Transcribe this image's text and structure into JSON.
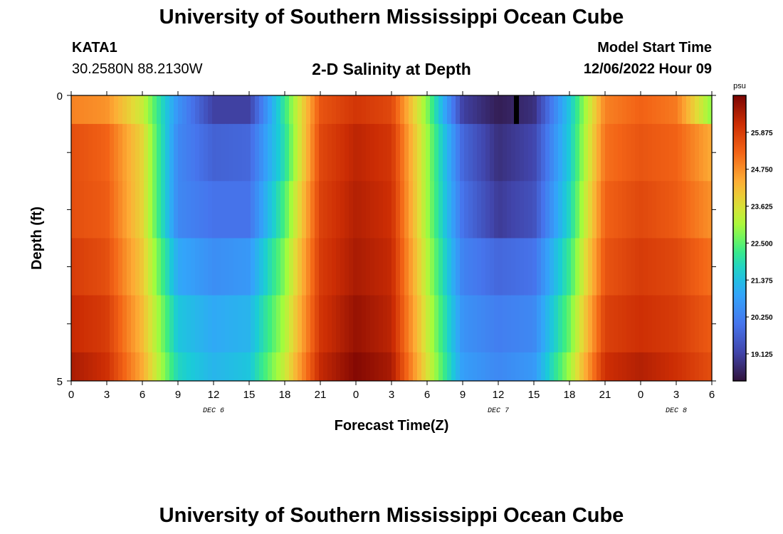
{
  "header": {
    "title": "University of Southern Mississippi Ocean Cube",
    "station": "KATA1",
    "coords": "30.2580N  88.2130W",
    "subtitle": "2-D Salinity at Depth",
    "model_start_label": "Model Start Time",
    "model_start_value": "12/06/2022 Hour 09"
  },
  "footer": {
    "title": "University of Southern Mississippi Ocean Cube"
  },
  "chart_data": {
    "type": "heatmap",
    "title": "2-D Salinity at Depth",
    "xlabel": "Forecast Time(Z)",
    "ylabel": "Depth (ft)",
    "x_hours_range": [
      0,
      54
    ],
    "x_tick_labels": [
      "0",
      "3",
      "6",
      "9",
      "12",
      "15",
      "18",
      "21",
      "0",
      "3",
      "6",
      "9",
      "12",
      "15",
      "18",
      "21",
      "0",
      "3",
      "6"
    ],
    "day_labels": [
      {
        "label": "DEC 6",
        "hour": 12
      },
      {
        "label": "DEC 7",
        "hour": 36
      },
      {
        "label": "DEC 8",
        "hour": 51
      }
    ],
    "y_tick_labels": [
      "0",
      "5"
    ],
    "ylim": [
      0,
      5
    ],
    "depth_levels_ft": [
      0,
      1,
      2,
      3,
      4,
      5
    ],
    "colorbar": {
      "unit": "psu",
      "range": [
        18.3,
        27.0
      ],
      "tick_values": [
        19.125,
        20.25,
        21.375,
        22.5,
        23.625,
        24.75,
        25.875
      ],
      "tick_labels": [
        "19.125",
        "20.250",
        "21.375",
        "22.500",
        "23.625",
        "24.750",
        "25.875"
      ]
    },
    "grid": false,
    "legend": "right colorbar",
    "salinity_psu": {
      "hours": [
        0,
        3,
        6,
        9,
        12,
        15,
        18,
        21,
        24,
        27,
        30,
        33,
        36,
        39,
        42,
        45,
        48,
        51,
        54
      ],
      "rows": [
        [
          24.9,
          24.7,
          23.4,
          20.6,
          19.1,
          19.1,
          22.2,
          25.5,
          26.0,
          25.7,
          22.8,
          19.1,
          18.5,
          18.8,
          21.5,
          24.9,
          25.3,
          25.0,
          22.8
        ],
        [
          25.6,
          25.3,
          23.8,
          20.4,
          19.7,
          19.8,
          22.0,
          25.7,
          26.3,
          26.0,
          23.0,
          19.8,
          18.8,
          19.2,
          21.6,
          25.1,
          25.5,
          25.3,
          24.4
        ],
        [
          25.6,
          25.4,
          23.8,
          20.4,
          20.0,
          20.0,
          22.4,
          25.8,
          26.4,
          26.1,
          23.0,
          20.0,
          19.0,
          19.4,
          21.8,
          25.3,
          25.7,
          25.4,
          24.7
        ],
        [
          25.9,
          25.6,
          24.0,
          21.0,
          20.5,
          20.7,
          22.8,
          25.9,
          26.5,
          26.2,
          23.2,
          20.3,
          19.8,
          20.0,
          22.2,
          25.5,
          25.9,
          25.7,
          25.1
        ],
        [
          26.2,
          25.9,
          24.2,
          21.5,
          21.0,
          21.2,
          23.1,
          26.0,
          26.7,
          26.3,
          23.4,
          20.6,
          20.2,
          20.4,
          22.6,
          25.8,
          26.1,
          25.9,
          25.4
        ],
        [
          26.5,
          26.1,
          24.4,
          21.8,
          21.2,
          21.5,
          23.4,
          26.2,
          26.9,
          26.5,
          23.6,
          20.8,
          20.4,
          20.7,
          23.0,
          26.1,
          26.4,
          26.1,
          25.6
        ]
      ]
    },
    "marker": {
      "hour": 37.5,
      "depth_ft": [
        0,
        0.5
      ]
    }
  }
}
